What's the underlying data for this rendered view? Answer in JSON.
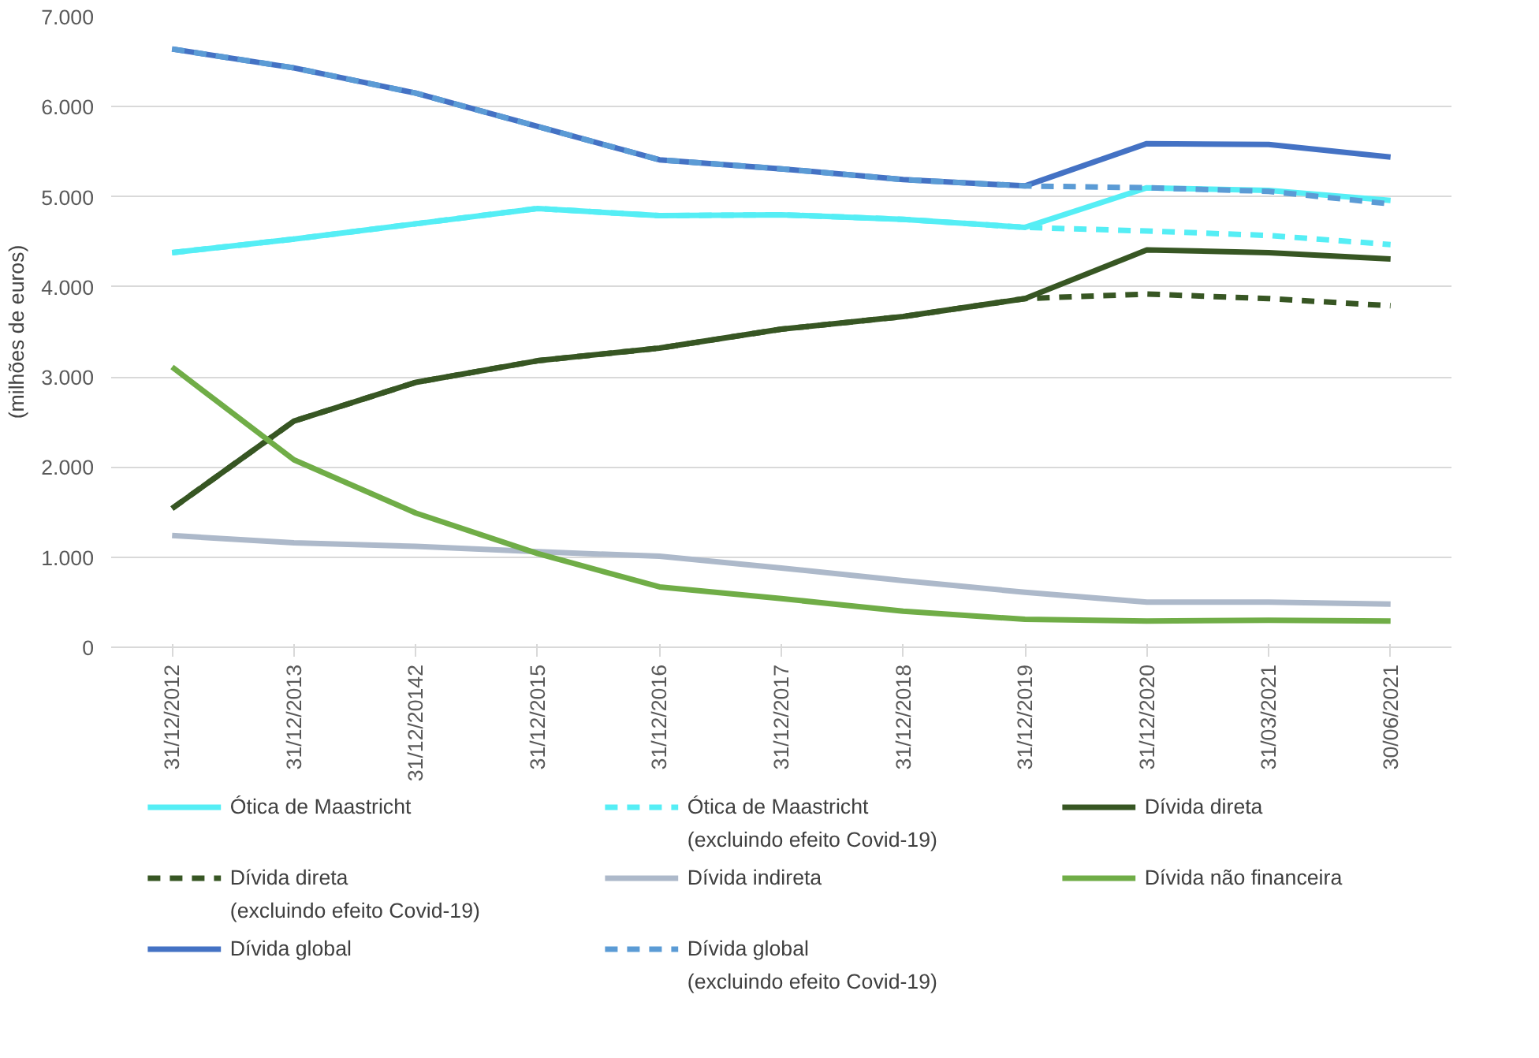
{
  "chart_data": {
    "type": "line",
    "ylabel": "(milhões de euros)",
    "categories": [
      "31/12/2012",
      "31/12/2013",
      "31/12/20142",
      "31/12/2015",
      "31/12/2016",
      "31/12/2017",
      "31/12/2018",
      "31/12/2019",
      "31/12/2020",
      "31/03/2021",
      "30/06/2021"
    ],
    "ylim": [
      0,
      7000
    ],
    "yticks": [
      {
        "value": 0,
        "label": "0"
      },
      {
        "value": 1000,
        "label": "1.000"
      },
      {
        "value": 2000,
        "label": "2.000"
      },
      {
        "value": 3000,
        "label": "3.000"
      },
      {
        "value": 4000,
        "label": "4.000"
      },
      {
        "value": 5000,
        "label": "5.000"
      },
      {
        "value": 6000,
        "label": "6.000"
      },
      {
        "value": 7000,
        "label": "7.000"
      }
    ],
    "grid": "y",
    "legend": "bottom",
    "marker": "none",
    "series": [
      {
        "name": "Ótica de Maastricht",
        "color": "#55eef5",
        "line_style": "solid",
        "values": [
          4380,
          4530,
          4700,
          4870,
          4790,
          4800,
          4750,
          4660,
          5100,
          5070,
          4960
        ]
      },
      {
        "name": "Ótica de Maastricht\n(excluindo efeito Covid-19)",
        "color": "#55eef5",
        "line_style": "dashed",
        "values": [
          4380,
          4530,
          4700,
          4870,
          4790,
          4800,
          4750,
          4660,
          4620,
          4570,
          4470
        ]
      },
      {
        "name": "Dívida direta",
        "color": "#375623",
        "line_style": "solid",
        "values": [
          1540,
          2510,
          2940,
          3180,
          3320,
          3530,
          3670,
          3870,
          4410,
          4380,
          4310
        ]
      },
      {
        "name": "Dívida direta\n(excluindo efeito Covid-19)",
        "color": "#375623",
        "line_style": "dashed",
        "values": [
          1540,
          2510,
          2940,
          3180,
          3320,
          3530,
          3670,
          3870,
          3920,
          3870,
          3790
        ]
      },
      {
        "name": "Dívida indireta",
        "color": "#adb9ca",
        "line_style": "solid",
        "values": [
          1240,
          1160,
          1120,
          1060,
          1010,
          880,
          740,
          610,
          500,
          500,
          480
        ]
      },
      {
        "name": "Dívida não financeira",
        "color": "#70ad47",
        "line_style": "solid",
        "values": [
          3110,
          2080,
          1490,
          1040,
          670,
          540,
          400,
          310,
          290,
          300,
          290
        ]
      },
      {
        "name": "Dívida global",
        "color": "#4472c4",
        "line_style": "solid",
        "values": [
          6640,
          6430,
          6150,
          5780,
          5410,
          5310,
          5190,
          5120,
          5590,
          5580,
          5440
        ]
      },
      {
        "name": "Dívida global\n(excluindo efeito Covid-19)",
        "color": "#5b9bd5",
        "line_style": "dashed",
        "values": [
          6640,
          6430,
          6150,
          5780,
          5410,
          5310,
          5190,
          5120,
          5100,
          5060,
          4920
        ]
      }
    ]
  }
}
